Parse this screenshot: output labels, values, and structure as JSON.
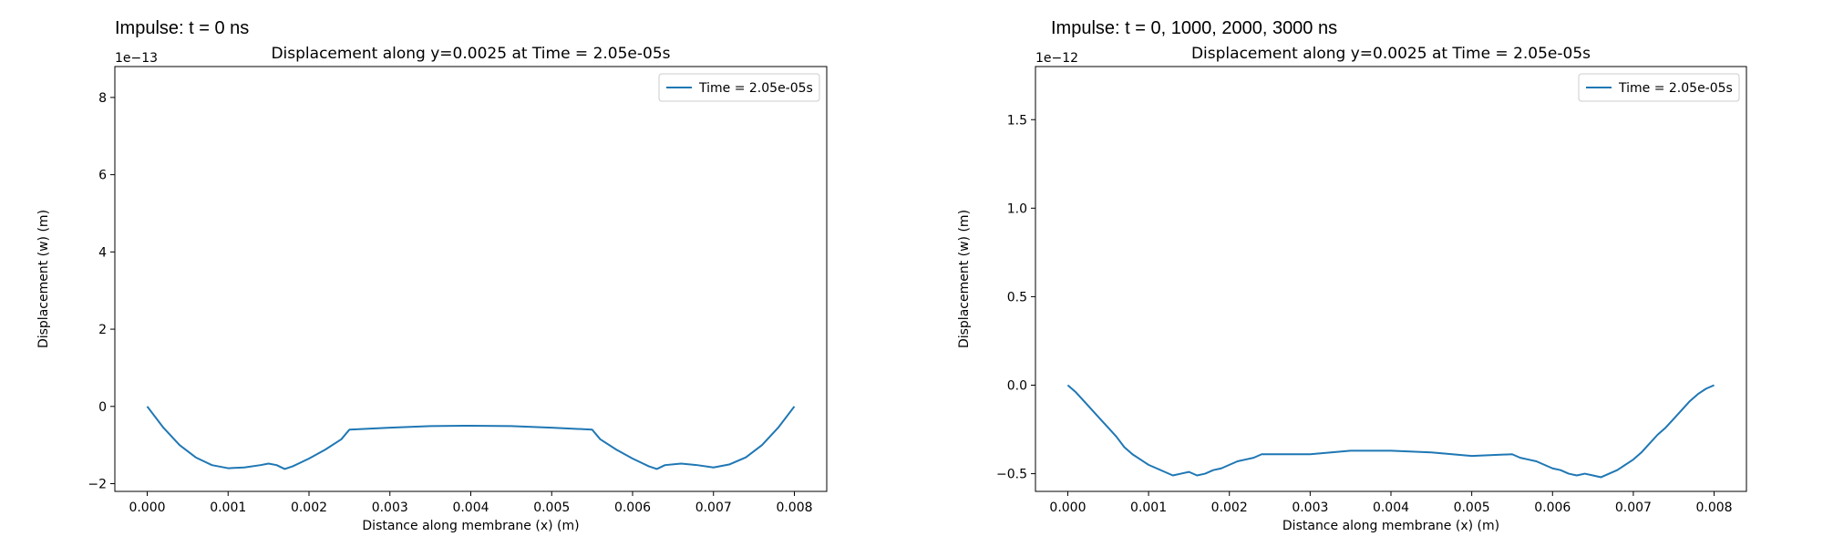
{
  "chart_data": [
    {
      "type": "line",
      "suptitle": "Impulse: t = 0 ns",
      "title": "Displacement along y=0.0025 at Time = 2.05e-05s",
      "xlabel": "Distance along membrane (x) (m)",
      "ylabel": "Displacement (w) (m)",
      "y_offset_label": "1e−13",
      "xlim": [
        -0.0004,
        0.0084
      ],
      "ylim": [
        -2.2,
        8.8
      ],
      "xticks": [
        0.0,
        0.001,
        0.002,
        0.003,
        0.004,
        0.005,
        0.006,
        0.007,
        0.008
      ],
      "xtick_labels": [
        "0.000",
        "0.001",
        "0.002",
        "0.003",
        "0.004",
        "0.005",
        "0.006",
        "0.007",
        "0.008"
      ],
      "yticks": [
        -2,
        0,
        2,
        4,
        6,
        8
      ],
      "ytick_labels": [
        "−2",
        "0",
        "2",
        "4",
        "6",
        "8"
      ],
      "grid": false,
      "legend_position": "top-right",
      "series": [
        {
          "name": "Time = 2.05e-05s",
          "color": "#1f77b4",
          "x": [
            0.0,
            0.0002,
            0.0004,
            0.0006,
            0.0008,
            0.001,
            0.0012,
            0.0014,
            0.0015,
            0.0016,
            0.0017,
            0.0018,
            0.002,
            0.0022,
            0.0024,
            0.0025,
            0.003,
            0.0035,
            0.004,
            0.0045,
            0.005,
            0.0055,
            0.0056,
            0.0058,
            0.006,
            0.0062,
            0.0063,
            0.0064,
            0.0066,
            0.0068,
            0.007,
            0.0072,
            0.0074,
            0.0076,
            0.0078,
            0.008
          ],
          "y": [
            0.0,
            -0.55,
            -1.0,
            -1.32,
            -1.52,
            -1.6,
            -1.58,
            -1.52,
            -1.48,
            -1.52,
            -1.62,
            -1.55,
            -1.35,
            -1.12,
            -0.85,
            -0.6,
            -0.55,
            -0.51,
            -0.5,
            -0.51,
            -0.55,
            -0.6,
            -0.85,
            -1.12,
            -1.35,
            -1.55,
            -1.62,
            -1.52,
            -1.48,
            -1.52,
            -1.58,
            -1.5,
            -1.32,
            -1.0,
            -0.55,
            0.0
          ]
        }
      ]
    },
    {
      "type": "line",
      "suptitle": "Impulse: t = 0, 1000, 2000, 3000 ns",
      "title": "Displacement along y=0.0025 at Time = 2.05e-05s",
      "xlabel": "Distance along membrane (x) (m)",
      "ylabel": "Displacement (w) (m)",
      "y_offset_label": "1e−12",
      "xlim": [
        -0.0004,
        0.0084
      ],
      "ylim": [
        -0.6,
        1.8
      ],
      "xticks": [
        0.0,
        0.001,
        0.002,
        0.003,
        0.004,
        0.005,
        0.006,
        0.007,
        0.008
      ],
      "xtick_labels": [
        "0.000",
        "0.001",
        "0.002",
        "0.003",
        "0.004",
        "0.005",
        "0.006",
        "0.007",
        "0.008"
      ],
      "yticks": [
        -0.5,
        0.0,
        0.5,
        1.0,
        1.5
      ],
      "ytick_labels": [
        "−0.5",
        "0.0",
        "0.5",
        "1.0",
        "1.5"
      ],
      "grid": false,
      "legend_position": "top-right",
      "series": [
        {
          "name": "Time = 2.05e-05s",
          "color": "#1f77b4",
          "x": [
            0.0,
            0.0001,
            0.0002,
            0.0003,
            0.0004,
            0.0005,
            0.0006,
            0.0007,
            0.0008,
            0.0009,
            0.001,
            0.0011,
            0.0012,
            0.0013,
            0.0014,
            0.0015,
            0.0016,
            0.0017,
            0.0018,
            0.0019,
            0.002,
            0.0021,
            0.0022,
            0.0023,
            0.0024,
            0.0025,
            0.003,
            0.0035,
            0.004,
            0.0045,
            0.005,
            0.0055,
            0.0056,
            0.0057,
            0.0058,
            0.0059,
            0.006,
            0.0061,
            0.0062,
            0.0063,
            0.0064,
            0.0065,
            0.0066,
            0.0067,
            0.0068,
            0.0069,
            0.007,
            0.0071,
            0.0072,
            0.0073,
            0.0074,
            0.0075,
            0.0076,
            0.0077,
            0.0078,
            0.0079,
            0.008
          ],
          "y": [
            0.0,
            -0.04,
            -0.09,
            -0.14,
            -0.19,
            -0.24,
            -0.29,
            -0.35,
            -0.39,
            -0.42,
            -0.45,
            -0.47,
            -0.49,
            -0.51,
            -0.5,
            -0.49,
            -0.51,
            -0.5,
            -0.48,
            -0.47,
            -0.45,
            -0.43,
            -0.42,
            -0.41,
            -0.39,
            -0.39,
            -0.39,
            -0.37,
            -0.37,
            -0.38,
            -0.4,
            -0.39,
            -0.41,
            -0.42,
            -0.43,
            -0.45,
            -0.47,
            -0.48,
            -0.5,
            -0.51,
            -0.5,
            -0.51,
            -0.52,
            -0.5,
            -0.48,
            -0.45,
            -0.42,
            -0.38,
            -0.33,
            -0.28,
            -0.24,
            -0.19,
            -0.14,
            -0.09,
            -0.05,
            -0.02,
            0.0
          ]
        }
      ]
    }
  ]
}
